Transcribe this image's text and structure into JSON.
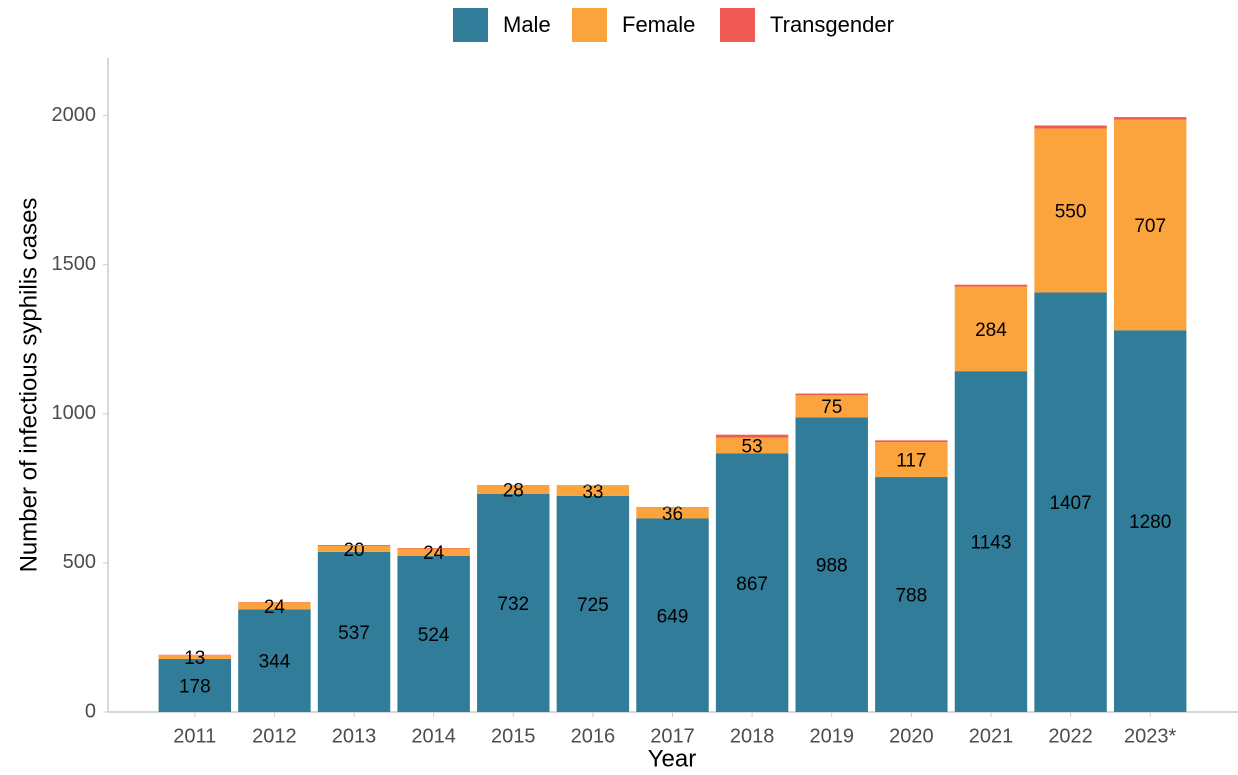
{
  "chart_data": {
    "type": "stacked_bar",
    "x_label": "Year",
    "y_label": "Number of infectious syphilis cases",
    "categories": [
      "2011",
      "2012",
      "2013",
      "2014",
      "2015",
      "2016",
      "2017",
      "2018",
      "2019",
      "2020",
      "2021",
      "2022",
      "2023*"
    ],
    "series": [
      {
        "name": "Male",
        "color": "#317d99",
        "values": [
          178,
          344,
          537,
          524,
          732,
          725,
          649,
          867,
          988,
          788,
          1143,
          1407,
          1280
        ]
      },
      {
        "name": "Female",
        "color": "#fba33c",
        "values": [
          13,
          24,
          20,
          24,
          28,
          33,
          36,
          53,
          75,
          117,
          284,
          550,
          707
        ]
      },
      {
        "name": "Transgender",
        "color": "#f05a55",
        "values": [
          1,
          1,
          3,
          2,
          1,
          2,
          2,
          10,
          5,
          6,
          6,
          10,
          8
        ]
      }
    ],
    "data_labels_series": [
      "Male",
      "Female"
    ],
    "ylim": [
      0,
      2200
    ],
    "yticks": [
      0,
      500,
      1000,
      1500,
      2000
    ],
    "grid": false,
    "legend": "top"
  }
}
